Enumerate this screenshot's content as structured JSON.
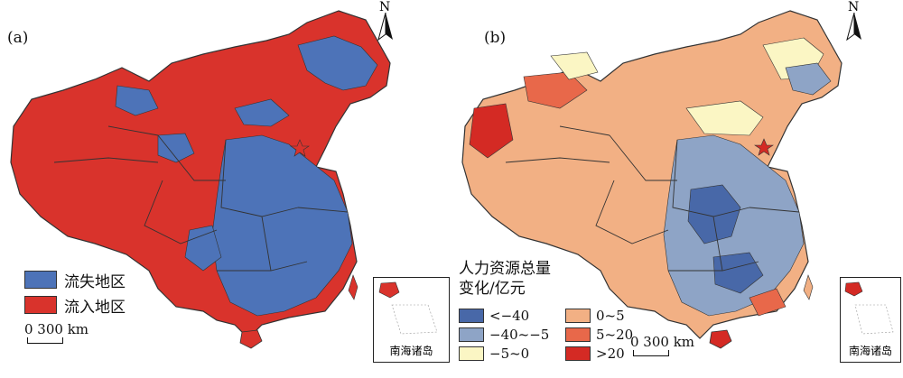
{
  "panels": {
    "a": {
      "label": "(a)",
      "legend": [
        {
          "label": "流失地区",
          "color": "#4d73b8"
        },
        {
          "label": "流入地区",
          "color": "#d9332c"
        }
      ],
      "scale_label": "0 300 km",
      "north": "N",
      "inset_label": "南海诸岛"
    },
    "b": {
      "label": "(b)",
      "legend_title_line1": "人力资源总量",
      "legend_title_line2": "变化/亿元",
      "legend": [
        {
          "label": "<−40",
          "color": "#4868a8"
        },
        {
          "label": "0~5",
          "color": "#f2b084"
        },
        {
          "label": "−40~−5",
          "color": "#8ea4c6"
        },
        {
          "label": "5~20",
          "color": "#e8684a"
        },
        {
          "label": "−5~0",
          "color": "#fbf6c4"
        },
        {
          "label": ">20",
          "color": "#d42a24"
        }
      ],
      "scale_label": "0 300 km",
      "north": "N",
      "inset_label": "南海诸岛"
    }
  }
}
